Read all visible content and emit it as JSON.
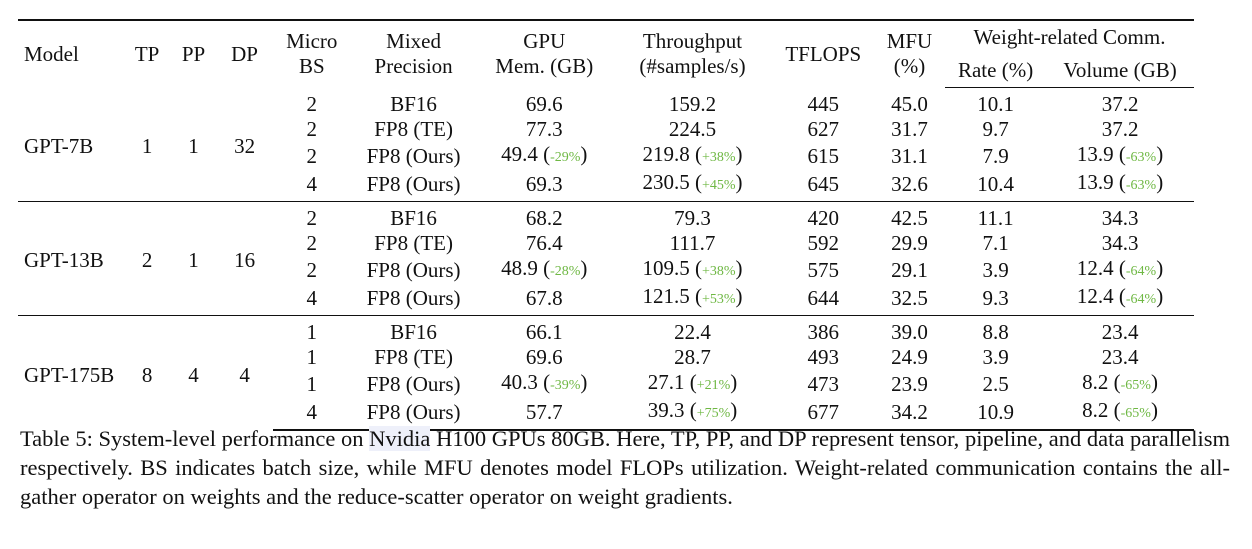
{
  "table": {
    "headers": {
      "model": "Model",
      "tp": "TP",
      "pp": "PP",
      "dp": "DP",
      "micro_bs": [
        "Micro",
        "BS"
      ],
      "mixed_precision": [
        "Mixed",
        "Precision"
      ],
      "gpu_mem": [
        "GPU",
        "Mem. (GB)"
      ],
      "throughput": [
        "Throughput",
        "(#samples/s)"
      ],
      "tflops": "TFLOPS",
      "mfu": [
        "MFU",
        "(%)"
      ],
      "weight_comm": "Weight-related Comm.",
      "rate": "Rate (%)",
      "volume": "Volume (GB)"
    },
    "groups": [
      {
        "model": "GPT-7B",
        "tp": "1",
        "pp": "1",
        "dp": "32",
        "rows": [
          {
            "micro_bs": "2",
            "precision": "BF16",
            "gpu_mem": "69.6",
            "gpu_mem_pct": "",
            "throughput": "159.2",
            "throughput_pct": "",
            "tflops": "445",
            "mfu": "45.0",
            "rate": "10.1",
            "volume": "37.2",
            "volume_pct": ""
          },
          {
            "micro_bs": "2",
            "precision": "FP8 (TE)",
            "gpu_mem": "77.3",
            "gpu_mem_pct": "",
            "throughput": "224.5",
            "throughput_pct": "",
            "tflops": "627",
            "mfu": "31.7",
            "rate": "9.7",
            "volume": "37.2",
            "volume_pct": ""
          },
          {
            "micro_bs": "2",
            "precision": "FP8 (Ours)",
            "gpu_mem": "49.4",
            "gpu_mem_pct": "-29%",
            "throughput": "219.8",
            "throughput_pct": "+38%",
            "tflops": "615",
            "mfu": "31.1",
            "rate": "7.9",
            "volume": "13.9",
            "volume_pct": "-63%"
          },
          {
            "micro_bs": "4",
            "precision": "FP8 (Ours)",
            "gpu_mem": "69.3",
            "gpu_mem_pct": "",
            "throughput": "230.5",
            "throughput_pct": "+45%",
            "tflops": "645",
            "mfu": "32.6",
            "rate": "10.4",
            "volume": "13.9",
            "volume_pct": "-63%"
          }
        ]
      },
      {
        "model": "GPT-13B",
        "tp": "2",
        "pp": "1",
        "dp": "16",
        "rows": [
          {
            "micro_bs": "2",
            "precision": "BF16",
            "gpu_mem": "68.2",
            "gpu_mem_pct": "",
            "throughput": "79.3",
            "throughput_pct": "",
            "tflops": "420",
            "mfu": "42.5",
            "rate": "11.1",
            "volume": "34.3",
            "volume_pct": ""
          },
          {
            "micro_bs": "2",
            "precision": "FP8 (TE)",
            "gpu_mem": "76.4",
            "gpu_mem_pct": "",
            "throughput": "111.7",
            "throughput_pct": "",
            "tflops": "592",
            "mfu": "29.9",
            "rate": "7.1",
            "volume": "34.3",
            "volume_pct": ""
          },
          {
            "micro_bs": "2",
            "precision": "FP8 (Ours)",
            "gpu_mem": "48.9",
            "gpu_mem_pct": "-28%",
            "throughput": "109.5",
            "throughput_pct": "+38%",
            "tflops": "575",
            "mfu": "29.1",
            "rate": "3.9",
            "volume": "12.4",
            "volume_pct": "-64%"
          },
          {
            "micro_bs": "4",
            "precision": "FP8 (Ours)",
            "gpu_mem": "67.8",
            "gpu_mem_pct": "",
            "throughput": "121.5",
            "throughput_pct": "+53%",
            "tflops": "644",
            "mfu": "32.5",
            "rate": "9.3",
            "volume": "12.4",
            "volume_pct": "-64%"
          }
        ]
      },
      {
        "model": "GPT-175B",
        "tp": "8",
        "pp": "4",
        "dp": "4",
        "rows": [
          {
            "micro_bs": "1",
            "precision": "BF16",
            "gpu_mem": "66.1",
            "gpu_mem_pct": "",
            "throughput": "22.4",
            "throughput_pct": "",
            "tflops": "386",
            "mfu": "39.0",
            "rate": "8.8",
            "volume": "23.4",
            "volume_pct": ""
          },
          {
            "micro_bs": "1",
            "precision": "FP8 (TE)",
            "gpu_mem": "69.6",
            "gpu_mem_pct": "",
            "throughput": "28.7",
            "throughput_pct": "",
            "tflops": "493",
            "mfu": "24.9",
            "rate": "3.9",
            "volume": "23.4",
            "volume_pct": ""
          },
          {
            "micro_bs": "1",
            "precision": "FP8 (Ours)",
            "gpu_mem": "40.3",
            "gpu_mem_pct": "-39%",
            "throughput": "27.1",
            "throughput_pct": "+21%",
            "tflops": "473",
            "mfu": "23.9",
            "rate": "2.5",
            "volume": "8.2",
            "volume_pct": "-65%"
          },
          {
            "micro_bs": "4",
            "precision": "FP8 (Ours)",
            "gpu_mem": "57.7",
            "gpu_mem_pct": "",
            "throughput": "39.3",
            "throughput_pct": "+75%",
            "tflops": "677",
            "mfu": "34.2",
            "rate": "10.9",
            "volume": "8.2",
            "volume_pct": "-65%"
          }
        ]
      }
    ]
  },
  "caption": {
    "label": "Table 5:",
    "text_before": " System-level performance on ",
    "highlight": "Nvidia",
    "text_after": " H100 GPUs 80GB. Here, TP, PP, and DP represent tensor, pipeline, and data parallelism respectively.  BS indicates batch size, while MFU denotes model FLOPs utilization. Weight-related communication contains the all-gather operator on weights and the reduce-scatter operator on weight gradients."
  },
  "colors": {
    "delta_green": "#6fb844",
    "highlight_bg": "#eef0fa"
  }
}
